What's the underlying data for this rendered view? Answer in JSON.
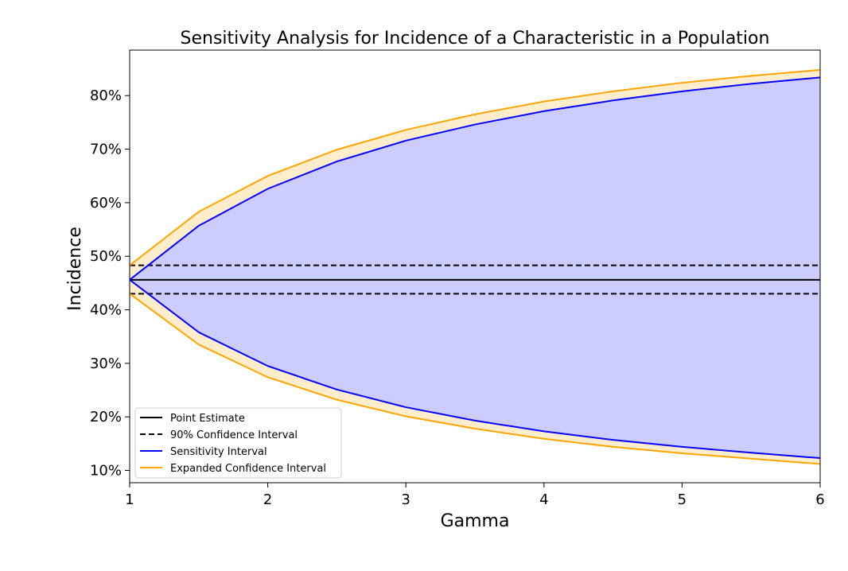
{
  "chart_data": {
    "type": "area",
    "title": "Sensitivity Analysis for Incidence of a Characteristic in a Population",
    "xlabel": "Gamma",
    "ylabel": "Incidence",
    "xlim": [
      1,
      6
    ],
    "ylim": [
      0.077,
      0.885
    ],
    "x_ticks": [
      1,
      2,
      3,
      4,
      5,
      6
    ],
    "x_tick_labels": [
      "1",
      "2",
      "3",
      "4",
      "5",
      "6"
    ],
    "y_ticks": [
      0.1,
      0.2,
      0.3,
      0.4,
      0.5,
      0.6,
      0.7,
      0.8
    ],
    "y_tick_labels": [
      "10%",
      "20%",
      "30%",
      "40%",
      "50%",
      "60%",
      "70%",
      "80%"
    ],
    "grid": false,
    "legend_position": "lower-left",
    "colors": {
      "point_estimate": "#000000",
      "confidence_interval": "#000000",
      "sensitivity": "#0000ff",
      "sensitivity_fill": "#ccccff",
      "expanded": "#ffa500",
      "expanded_fill": "#ffedcc"
    },
    "point_estimate": 0.456,
    "confidence_interval": [
      0.43,
      0.483
    ],
    "x": [
      1,
      1.5,
      2,
      2.5,
      3,
      3.5,
      4,
      4.5,
      5,
      5.5,
      6
    ],
    "series": [
      {
        "name": "Sensitivity Interval",
        "upper": [
          0.456,
          0.557,
          0.626,
          0.677,
          0.716,
          0.746,
          0.771,
          0.791,
          0.808,
          0.822,
          0.834
        ],
        "lower": [
          0.456,
          0.358,
          0.295,
          0.251,
          0.218,
          0.193,
          0.173,
          0.157,
          0.144,
          0.133,
          0.123
        ]
      },
      {
        "name": "Expanded Confidence Interval",
        "upper": [
          0.483,
          0.583,
          0.65,
          0.699,
          0.736,
          0.765,
          0.789,
          0.808,
          0.824,
          0.837,
          0.848
        ],
        "lower": [
          0.43,
          0.335,
          0.274,
          0.232,
          0.201,
          0.178,
          0.159,
          0.144,
          0.132,
          0.122,
          0.112
        ]
      }
    ],
    "legend": [
      {
        "label": "Point Estimate",
        "style": "solid",
        "color": "#000000"
      },
      {
        "label": "90% Confidence Interval",
        "style": "dashed",
        "color": "#000000"
      },
      {
        "label": "Sensitivity Interval",
        "style": "solid",
        "color": "#0000ff"
      },
      {
        "label": "Expanded Confidence Interval",
        "style": "solid",
        "color": "#ffa500"
      }
    ]
  }
}
